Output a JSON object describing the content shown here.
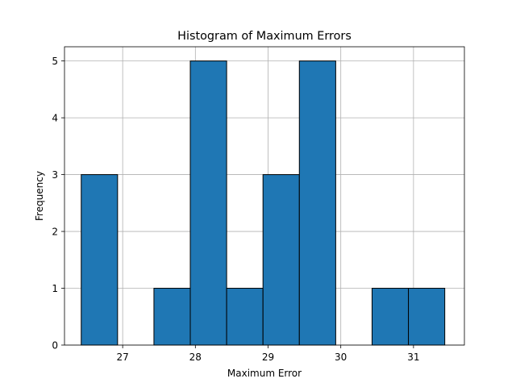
{
  "chart_data": {
    "type": "bar",
    "title": "Histogram of Maximum Errors",
    "xlabel": "Maximum Error",
    "ylabel": "Frequency",
    "xlim": [
      26.2,
      31.7
    ],
    "ylim": [
      0,
      5.25
    ],
    "xticks": [
      27,
      28,
      29,
      30,
      31
    ],
    "yticks": [
      0,
      1,
      2,
      3,
      4,
      5
    ],
    "grid": true,
    "bar_color": "#1f77b4",
    "edge_color": "#000000",
    "bins": [
      {
        "start": 26.43,
        "end": 26.93,
        "count": 3
      },
      {
        "start": 26.93,
        "end": 27.43,
        "count": 0
      },
      {
        "start": 27.43,
        "end": 27.93,
        "count": 1
      },
      {
        "start": 27.93,
        "end": 28.43,
        "count": 5
      },
      {
        "start": 28.43,
        "end": 28.93,
        "count": 1
      },
      {
        "start": 28.93,
        "end": 29.43,
        "count": 3
      },
      {
        "start": 29.43,
        "end": 29.93,
        "count": 5
      },
      {
        "start": 29.93,
        "end": 30.43,
        "count": 0
      },
      {
        "start": 30.43,
        "end": 30.93,
        "count": 1
      },
      {
        "start": 30.93,
        "end": 31.43,
        "count": 1
      }
    ]
  }
}
